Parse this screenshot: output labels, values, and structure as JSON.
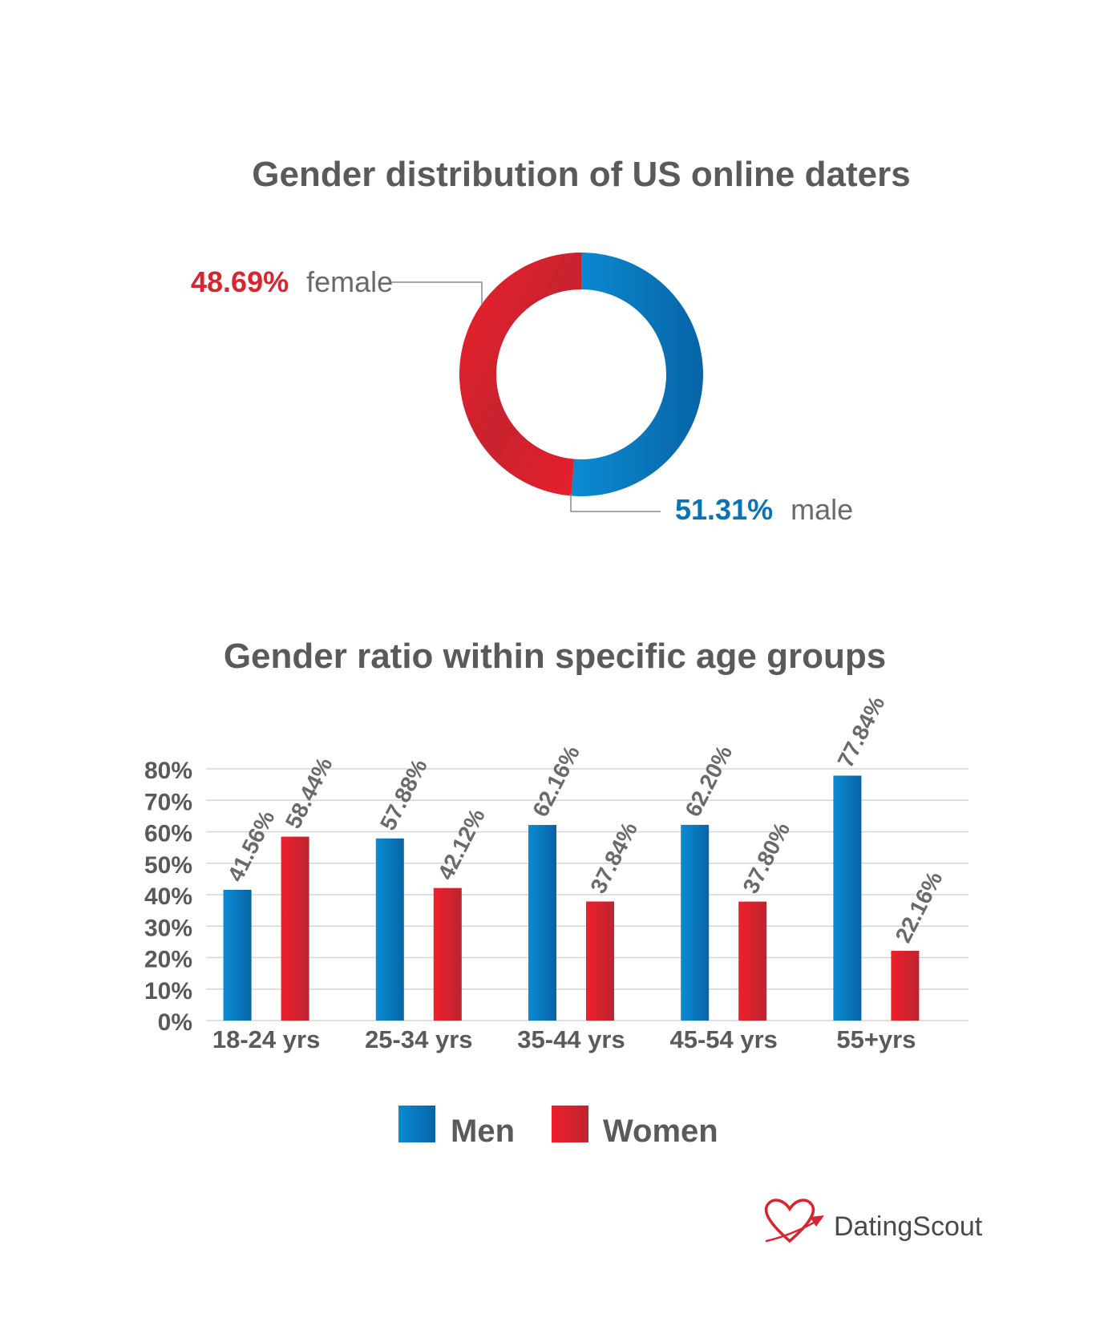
{
  "chart_data": [
    {
      "type": "pie",
      "title": "Gender distribution of US online daters",
      "slices": [
        {
          "label": "male",
          "value": 51.31,
          "value_label": "51.31%",
          "color": "#0a72b8"
        },
        {
          "label": "female",
          "value": 48.69,
          "value_label": "48.69%",
          "color": "#d7262f"
        }
      ]
    },
    {
      "type": "bar",
      "title": "Gender ratio within specific age groups",
      "categories": [
        "18-24 yrs",
        "25-34 yrs",
        "35-44 yrs",
        "45-54 yrs",
        "55+yrs"
      ],
      "series": [
        {
          "name": "Men",
          "color": "#0a72b8",
          "values": [
            41.56,
            57.88,
            62.16,
            62.2,
            77.84
          ],
          "labels": [
            "41.56%",
            "57.88%",
            "62.16%",
            "62.20%",
            "77.84%"
          ]
        },
        {
          "name": "Women",
          "color": "#d7262f",
          "values": [
            58.44,
            42.12,
            37.84,
            37.8,
            22.16
          ],
          "labels": [
            "58.44%",
            "42.12%",
            "37.84%",
            "37.80%",
            "22.16%"
          ]
        }
      ],
      "ylim": [
        0,
        80
      ],
      "yticks": [
        0,
        10,
        20,
        30,
        40,
        50,
        60,
        70,
        80
      ],
      "ytick_labels": [
        "0%",
        "10%",
        "20%",
        "30%",
        "40%",
        "50%",
        "60%",
        "70%",
        "80%"
      ],
      "grid": true,
      "legend": "bottom-center"
    }
  ],
  "brand": {
    "part1": "Dating",
    "part2": "Scout"
  }
}
